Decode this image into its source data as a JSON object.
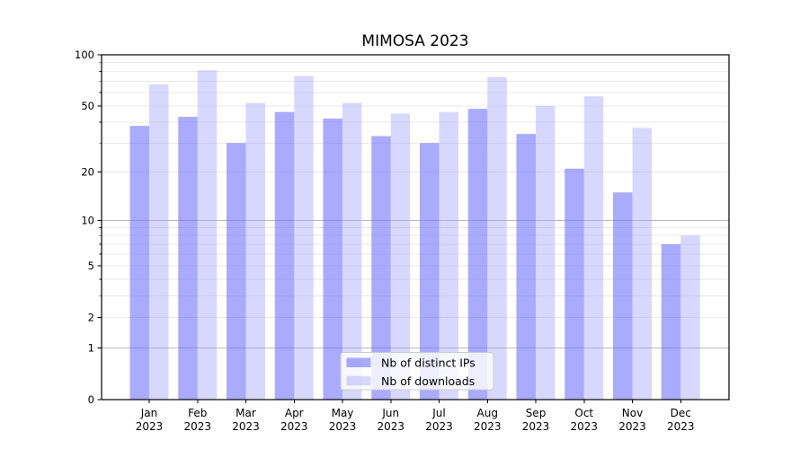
{
  "chart_data": {
    "type": "bar",
    "title": "MIMOSA 2023",
    "x_tick_months": [
      "Jan",
      "Feb",
      "Mar",
      "Apr",
      "May",
      "Jun",
      "Jul",
      "Aug",
      "Sep",
      "Oct",
      "Nov",
      "Dec"
    ],
    "x_tick_year": "2023",
    "series": [
      {
        "name": "Nb of distinct IPs",
        "base_color": "#6666ff",
        "fill_alpha": 0.556,
        "rendered_color": "#aaaafa",
        "values": [
          38,
          43,
          30,
          46,
          42,
          33,
          30,
          48,
          34,
          21,
          15,
          7
        ]
      },
      {
        "name": "Nb of downloads",
        "base_color": "#a0a0ff",
        "fill_alpha": 0.41,
        "rendered_color": "#d8d8fb",
        "values": [
          67,
          81,
          52,
          75,
          52,
          45,
          46,
          74,
          50,
          57,
          37,
          8
        ]
      }
    ],
    "yscale": "log1p",
    "ylim": [
      0,
      100
    ],
    "ytick_labels": [
      "0",
      "1",
      "2",
      "5",
      "10",
      "20",
      "50",
      "100"
    ],
    "yticks_labeled": [
      0,
      1,
      2,
      5,
      10,
      20,
      50,
      100
    ],
    "yticks_major_grid": [
      1,
      10
    ],
    "yticks_minor_grid": [
      2,
      3,
      4,
      5,
      6,
      7,
      8,
      9,
      20,
      30,
      40,
      50,
      60,
      70,
      80,
      90
    ],
    "grid": "horizontal",
    "legend_position": "inside-bottom-center",
    "colors": {
      "background": "#ffffff",
      "spine": "#000000",
      "major_grid": "#bbbbbb",
      "minor_grid": "#e9e9e9",
      "legend_border": "#cccccc",
      "legend_bg_alpha": 0.8,
      "text": "#000000"
    }
  }
}
